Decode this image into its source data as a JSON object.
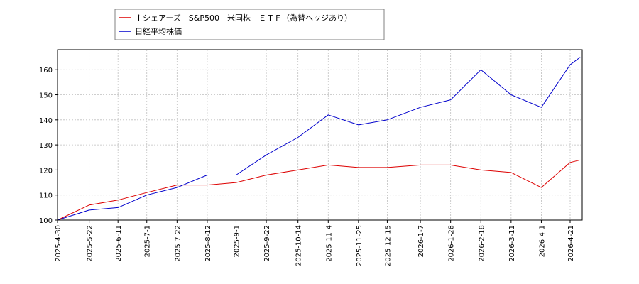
{
  "chart_data": {
    "type": "line",
    "legend": {
      "placement": "top-left"
    },
    "grid": true,
    "ylim": [
      100,
      168
    ],
    "yticks": [
      100,
      110,
      120,
      130,
      140,
      150,
      160
    ],
    "xticks": [
      "2025-4-30",
      "2025-5-22",
      "2025-6-11",
      "2025-7-1",
      "2025-7-22",
      "2025-8-12",
      "2025-9-1",
      "2025-9-22",
      "2025-10-14",
      "2025-11-4",
      "2025-11-25",
      "2025-12-15",
      "2026-1-7",
      "2026-1-28",
      "2026-2-18",
      "2026-3-11",
      "2026-4-1",
      "2026-4-21"
    ],
    "x": [
      "2025-4-30",
      "2025-5-22",
      "2025-6-11",
      "2025-7-1",
      "2025-7-22",
      "2025-8-12",
      "2025-9-1",
      "2025-9-22",
      "2025-10-14",
      "2025-11-4",
      "2025-11-25",
      "2025-12-15",
      "2026-1-7",
      "2026-1-28",
      "2026-2-18",
      "2026-3-11",
      "2026-4-1",
      "2026-4-21",
      "2026-4-28"
    ],
    "series": [
      {
        "name": "ｉシェアーズ　S&P500　米国株　ＥＴＦ（為替ヘッジあり）",
        "color": "#dd0000",
        "values": [
          100,
          106,
          108,
          111,
          114,
          114,
          115,
          118,
          120,
          122,
          121,
          121,
          122,
          122,
          120,
          119,
          113,
          123,
          124
        ]
      },
      {
        "name": "日経平均株価",
        "color": "#0000cc",
        "values": [
          100,
          104,
          105,
          110,
          113,
          118,
          118,
          126,
          133,
          142,
          138,
          140,
          145,
          148,
          160,
          150,
          145,
          162,
          165
        ]
      }
    ]
  }
}
